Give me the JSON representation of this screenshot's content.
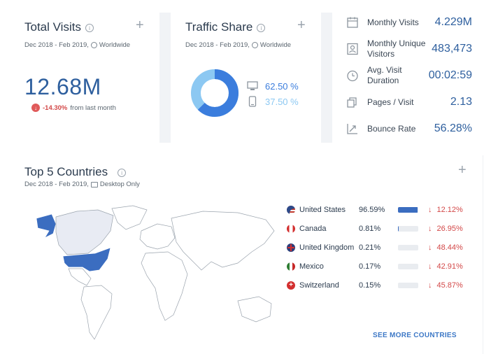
{
  "total_visits": {
    "title": "Total Visits",
    "date_range": "Dec 2018 - Feb 2019,",
    "scope": "Worldwide",
    "value": "12.68M",
    "change": "-14.30%",
    "change_suffix": "from last month"
  },
  "traffic_share": {
    "title": "Traffic Share",
    "date_range": "Dec 2018 - Feb 2019,",
    "scope": "Worldwide",
    "desktop_share": "62.50 %",
    "mobile_share": "37.50 %",
    "desktop_fraction": 0.625,
    "colors": {
      "desktop": "#3b7ddd",
      "mobile": "#8cc8f2"
    }
  },
  "engagement": {
    "monthly_visits_label": "Monthly Visits",
    "monthly_visits": "4.229M",
    "unique_visitors_label": "Monthly Unique Visitors",
    "unique_visitors": "483,473",
    "duration_label": "Avg. Visit Duration",
    "duration": "00:02:59",
    "pages_label": "Pages / Visit",
    "pages": "2.13",
    "bounce_label": "Bounce Rate",
    "bounce": "56.28%"
  },
  "top_countries": {
    "title": "Top 5 Countries",
    "date_range": "Dec 2018 - Feb 2019,",
    "scope": "Desktop Only",
    "rows": [
      {
        "name": "United States",
        "share": "96.59%",
        "share_fraction": 0.9659,
        "change": "12.12%"
      },
      {
        "name": "Canada",
        "share": "0.81%",
        "share_fraction": 0.0081,
        "change": "26.95%"
      },
      {
        "name": "United Kingdom",
        "share": "0.21%",
        "share_fraction": 0.0021,
        "change": "48.44%"
      },
      {
        "name": "Mexico",
        "share": "0.17%",
        "share_fraction": 0.0017,
        "change": "42.91%"
      },
      {
        "name": "Switzerland",
        "share": "0.15%",
        "share_fraction": 0.0015,
        "change": "45.87%"
      }
    ],
    "see_more": "SEE MORE COUNTRIES"
  },
  "colors": {
    "accent": "#2e5f9e",
    "negative": "#d34848",
    "map_highlight": "#3b6dc0",
    "map_base": "#ffffff"
  }
}
